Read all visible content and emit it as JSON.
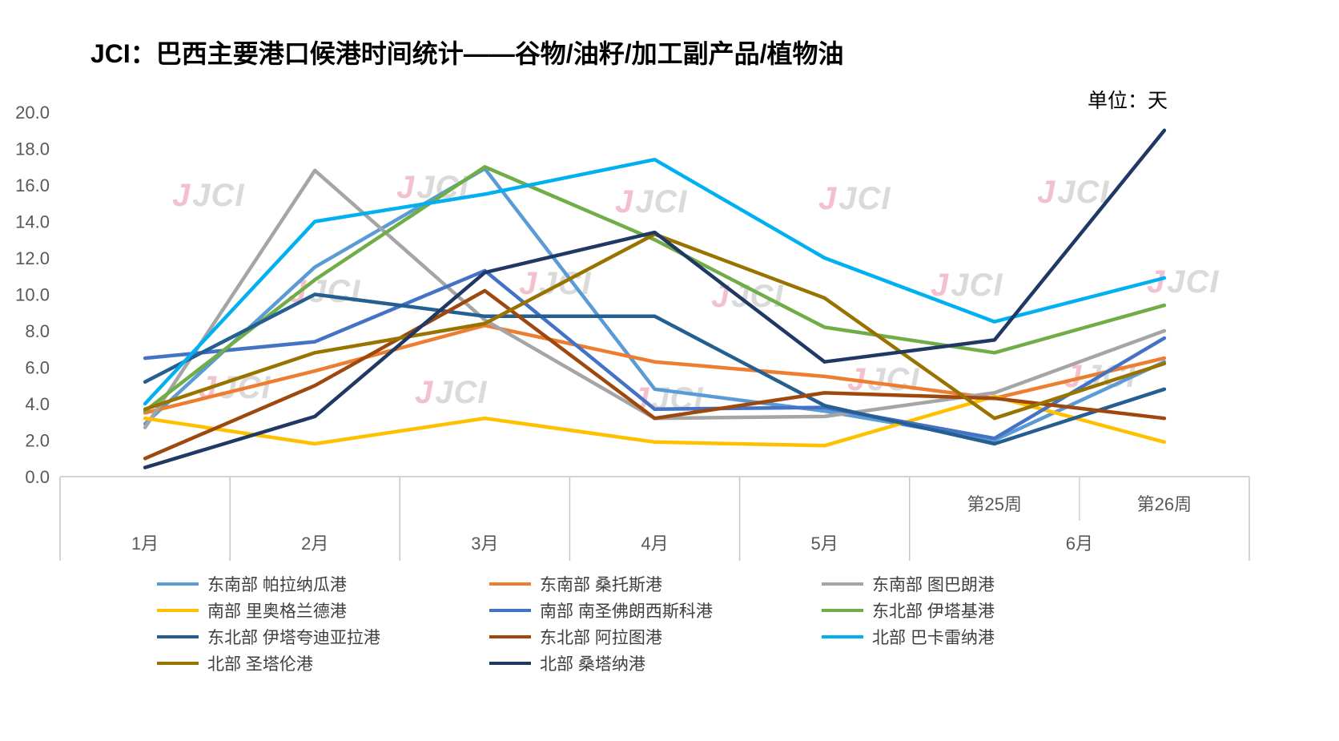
{
  "title": "JCI：巴西主要港口候港时间统计——谷物/油籽/加工副产品/植物油",
  "unit_label": "单位：天",
  "watermark_text": "JCI",
  "chart_data": {
    "type": "line",
    "categories": [
      "1月",
      "2月",
      "3月",
      "4月",
      "5月",
      "第25周",
      "第26周"
    ],
    "x_axis": {
      "groups": [
        {
          "label": "1月",
          "points": 1
        },
        {
          "label": "2月",
          "points": 1
        },
        {
          "label": "3月",
          "points": 1
        },
        {
          "label": "4月",
          "points": 1
        },
        {
          "label": "5月",
          "points": 1
        },
        {
          "label": "6月",
          "points": 2,
          "sub_labels": [
            "第25周",
            "第26周"
          ]
        }
      ]
    },
    "ylim": [
      0,
      20
    ],
    "ytick_labels": [
      "0.0",
      "2.0",
      "4.0",
      "6.0",
      "8.0",
      "10.0",
      "12.0",
      "14.0",
      "16.0",
      "18.0",
      "20.0"
    ],
    "grid": false,
    "legend_position": "bottom",
    "series": [
      {
        "name": "东南部 帕拉纳瓜港",
        "color": "#5B9BD5",
        "values": [
          2.9,
          11.5,
          16.9,
          4.8,
          3.6,
          2.0,
          6.3
        ]
      },
      {
        "name": "东南部 桑托斯港",
        "color": "#ED7D31",
        "values": [
          3.5,
          5.8,
          8.3,
          6.3,
          5.5,
          4.3,
          6.5
        ]
      },
      {
        "name": "东南部 图巴朗港",
        "color": "#A5A5A5",
        "values": [
          2.7,
          16.8,
          8.6,
          3.2,
          3.3,
          4.6,
          8.0
        ]
      },
      {
        "name": "南部 里奥格兰德港",
        "color": "#FFC000",
        "values": [
          3.2,
          1.8,
          3.2,
          1.9,
          1.7,
          4.4,
          1.9
        ]
      },
      {
        "name": "南部 南圣佛朗西斯科港",
        "color": "#4472C4",
        "values": [
          6.5,
          7.4,
          11.3,
          3.7,
          3.8,
          2.1,
          7.6
        ]
      },
      {
        "name": "东北部 伊塔基港",
        "color": "#70AD47",
        "values": [
          3.6,
          10.8,
          17.0,
          13.0,
          8.2,
          6.8,
          9.4
        ]
      },
      {
        "name": "东北部 伊塔夸迪亚拉港",
        "color": "#255E91",
        "values": [
          5.2,
          10.0,
          8.8,
          8.8,
          3.9,
          1.8,
          4.8
        ]
      },
      {
        "name": "东北部 阿拉图港",
        "color": "#9E480E",
        "values": [
          1.0,
          5.0,
          10.2,
          3.2,
          4.6,
          4.3,
          3.2
        ]
      },
      {
        "name": "北部 巴卡雷纳港",
        "color": "#00B0F0",
        "values": [
          4.0,
          14.0,
          15.5,
          17.4,
          12.0,
          8.5,
          10.9
        ]
      },
      {
        "name": "北部 圣塔伦港",
        "color": "#997300",
        "values": [
          3.7,
          6.8,
          8.4,
          13.3,
          9.8,
          3.2,
          6.2
        ]
      },
      {
        "name": "北部 桑塔纳港",
        "color": "#1F3864",
        "values": [
          0.5,
          3.3,
          11.2,
          13.4,
          6.3,
          7.5,
          19.0
        ]
      }
    ]
  }
}
